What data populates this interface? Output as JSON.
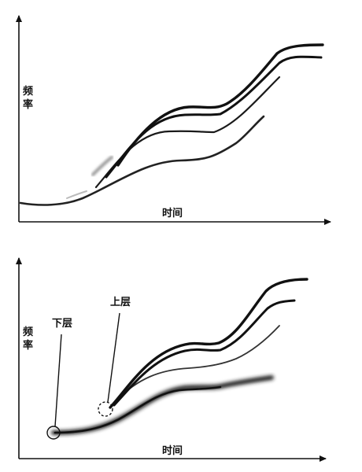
{
  "diagrams": [
    {
      "y_axis_label": [
        "频",
        "率"
      ],
      "x_axis_label": "时间"
    },
    {
      "y_axis_label": [
        "频",
        "率"
      ],
      "x_axis_label": "时间",
      "callouts": {
        "lower": "下层",
        "upper": "上层"
      }
    }
  ],
  "stroke_color": "#1a1a1a"
}
